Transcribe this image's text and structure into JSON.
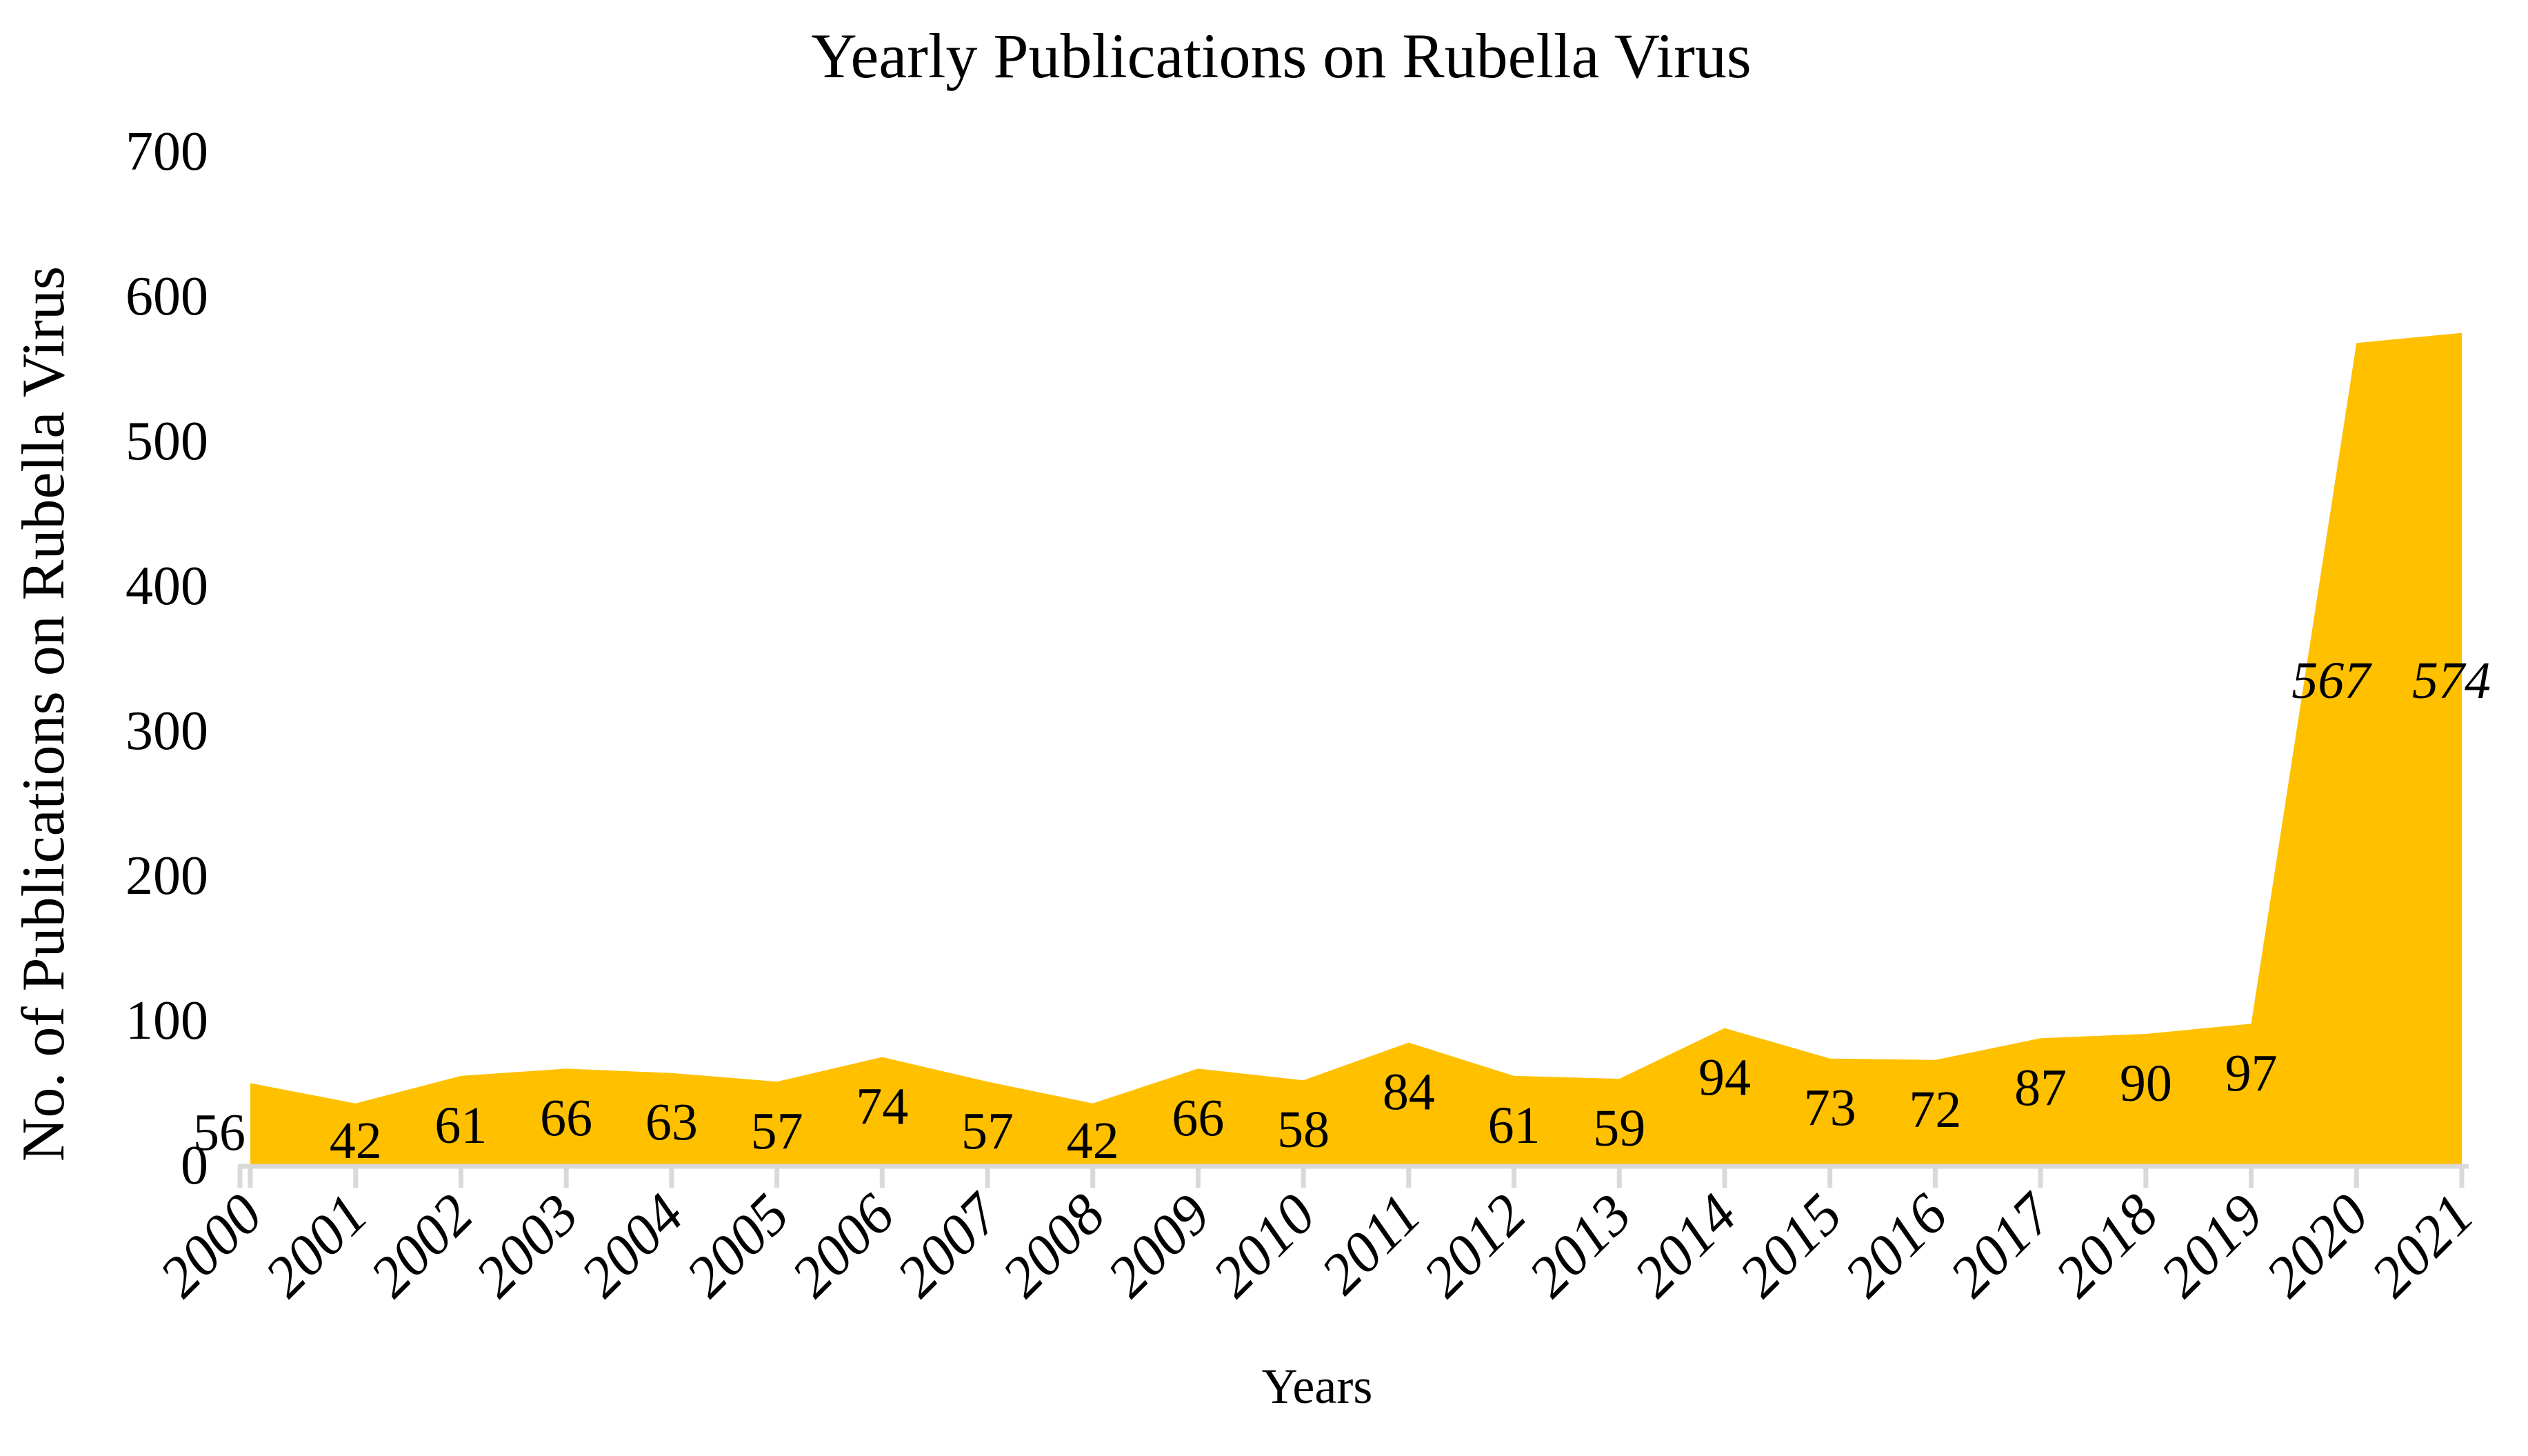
{
  "title": "Yearly Publications on Rubella Virus",
  "chart_data": {
    "type": "area",
    "title": "Yearly Publications on Rubella Virus",
    "xlabel": "Years",
    "ylabel": "No. of Publications on Rubella Virus",
    "categories": [
      "2000",
      "2001",
      "2002",
      "2003",
      "2004",
      "2005",
      "2006",
      "2007",
      "2008",
      "2009",
      "2010",
      "2011",
      "2012",
      "2013",
      "2014",
      "2015",
      "2016",
      "2017",
      "2018",
      "2019",
      "2020",
      "2021"
    ],
    "values": [
      56,
      42,
      61,
      66,
      63,
      57,
      74,
      57,
      42,
      66,
      58,
      84,
      61,
      59,
      94,
      73,
      72,
      87,
      90,
      97,
      567,
      574
    ],
    "data_labels_visible": true,
    "ylim": [
      0,
      700
    ],
    "y_ticks": [
      0,
      100,
      200,
      300,
      400,
      500,
      600,
      700
    ],
    "grid": false,
    "legend": "none",
    "colors": {
      "area_fill": "#FFC000",
      "axis_line": "#D9D9D9",
      "text": "#000000",
      "background": "#FFFFFF"
    }
  }
}
